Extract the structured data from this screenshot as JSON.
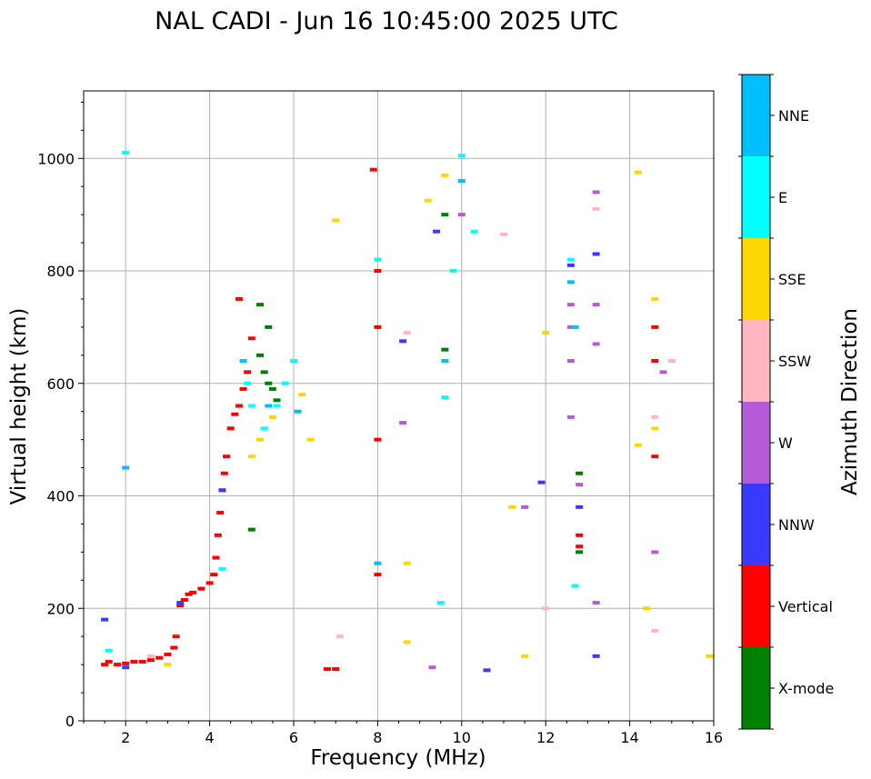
{
  "chart_data": {
    "type": "scatter",
    "title": "NAL CADI - Jun 16 10:45:00 2025 UTC",
    "xlabel": "Frequency (MHz)",
    "ylabel": "Virtual height (km)",
    "xlim": [
      1,
      16
    ],
    "ylim": [
      0,
      1120
    ],
    "xticks": [
      2,
      4,
      6,
      8,
      10,
      12,
      14,
      16
    ],
    "yticks": [
      0,
      200,
      400,
      600,
      800,
      1000
    ],
    "grid": true,
    "colorbar": {
      "title": "Azimuth Direction",
      "categories": [
        {
          "name": "X-mode",
          "color": "#008000"
        },
        {
          "name": "Vertical",
          "color": "#ff0000"
        },
        {
          "name": "NNW",
          "color": "#3a3aff"
        },
        {
          "name": "W",
          "color": "#b65bd8"
        },
        {
          "name": "SSW",
          "color": "#ffb6c1"
        },
        {
          "name": "SSE",
          "color": "#ffd700"
        },
        {
          "name": "E",
          "color": "#00ffff"
        },
        {
          "name": "NNE",
          "color": "#00bfff"
        }
      ]
    },
    "series": [
      {
        "name": "Vertical",
        "points": [
          [
            1.5,
            100
          ],
          [
            1.6,
            105
          ],
          [
            1.8,
            100
          ],
          [
            2.0,
            102
          ],
          [
            2.2,
            105
          ],
          [
            2.4,
            105
          ],
          [
            2.6,
            108
          ],
          [
            2.8,
            112
          ],
          [
            3.0,
            118
          ],
          [
            3.15,
            130
          ],
          [
            3.2,
            150
          ],
          [
            3.3,
            205
          ],
          [
            3.4,
            215
          ],
          [
            3.5,
            225
          ],
          [
            3.6,
            228
          ],
          [
            3.8,
            235
          ],
          [
            4.0,
            245
          ],
          [
            4.1,
            260
          ],
          [
            4.15,
            290
          ],
          [
            4.2,
            330
          ],
          [
            4.25,
            370
          ],
          [
            4.3,
            410
          ],
          [
            4.35,
            440
          ],
          [
            4.4,
            470
          ],
          [
            4.5,
            520
          ],
          [
            4.6,
            545
          ],
          [
            4.7,
            560
          ],
          [
            4.8,
            590
          ],
          [
            4.9,
            620
          ],
          [
            5.0,
            680
          ],
          [
            4.7,
            750
          ],
          [
            6.8,
            92
          ],
          [
            7.0,
            92
          ],
          [
            7.9,
            980
          ],
          [
            8.0,
            800
          ],
          [
            8.0,
            700
          ],
          [
            8.0,
            500
          ],
          [
            8.0,
            260
          ],
          [
            12.8,
            330
          ],
          [
            12.8,
            310
          ],
          [
            14.6,
            640
          ],
          [
            14.6,
            470
          ],
          [
            14.6,
            700
          ]
        ]
      },
      {
        "name": "X-mode",
        "points": [
          [
            5.2,
            650
          ],
          [
            5.3,
            620
          ],
          [
            5.4,
            600
          ],
          [
            5.5,
            590
          ],
          [
            5.6,
            570
          ],
          [
            5.2,
            740
          ],
          [
            5.4,
            700
          ],
          [
            5.0,
            340
          ],
          [
            9.6,
            660
          ],
          [
            9.6,
            900
          ],
          [
            12.8,
            440
          ],
          [
            12.8,
            300
          ]
        ]
      },
      {
        "name": "NNW",
        "points": [
          [
            1.5,
            180
          ],
          [
            2.0,
            95
          ],
          [
            3.3,
            210
          ],
          [
            4.3,
            410
          ],
          [
            8.6,
            675
          ],
          [
            9.4,
            870
          ],
          [
            10.6,
            90
          ],
          [
            11.9,
            424
          ],
          [
            12.6,
            810
          ],
          [
            13.2,
            115
          ],
          [
            13.2,
            830
          ],
          [
            12.8,
            380
          ]
        ]
      },
      {
        "name": "W",
        "points": [
          [
            8.6,
            530
          ],
          [
            9.3,
            95
          ],
          [
            10.0,
            900
          ],
          [
            11.5,
            380
          ],
          [
            12.6,
            540
          ],
          [
            12.6,
            640
          ],
          [
            12.6,
            700
          ],
          [
            12.6,
            740
          ],
          [
            13.2,
            940
          ],
          [
            13.2,
            740
          ],
          [
            13.2,
            670
          ],
          [
            13.2,
            210
          ],
          [
            12.8,
            420
          ],
          [
            14.8,
            620
          ],
          [
            14.6,
            300
          ]
        ]
      },
      {
        "name": "SSW",
        "points": [
          [
            2.6,
            115
          ],
          [
            7.1,
            150
          ],
          [
            8.7,
            690
          ],
          [
            11.0,
            865
          ],
          [
            12.0,
            200
          ],
          [
            13.2,
            910
          ],
          [
            14.6,
            160
          ],
          [
            15.0,
            640
          ],
          [
            14.6,
            540
          ]
        ]
      },
      {
        "name": "SSE",
        "points": [
          [
            3.0,
            100
          ],
          [
            5.0,
            470
          ],
          [
            5.2,
            500
          ],
          [
            5.5,
            540
          ],
          [
            6.2,
            580
          ],
          [
            6.4,
            500
          ],
          [
            7.0,
            890
          ],
          [
            8.7,
            140
          ],
          [
            8.7,
            280
          ],
          [
            9.2,
            925
          ],
          [
            9.6,
            970
          ],
          [
            11.2,
            380
          ],
          [
            11.5,
            115
          ],
          [
            12.0,
            690
          ],
          [
            14.2,
            975
          ],
          [
            14.2,
            490
          ],
          [
            14.4,
            200
          ],
          [
            14.6,
            750
          ],
          [
            14.6,
            520
          ],
          [
            15.9,
            115
          ]
        ]
      },
      {
        "name": "E",
        "points": [
          [
            1.6,
            125
          ],
          [
            2.0,
            1010
          ],
          [
            4.3,
            270
          ],
          [
            4.9,
            600
          ],
          [
            5.0,
            560
          ],
          [
            5.3,
            520
          ],
          [
            5.6,
            560
          ],
          [
            5.8,
            600
          ],
          [
            6.0,
            640
          ],
          [
            8.0,
            820
          ],
          [
            9.5,
            210
          ],
          [
            9.6,
            575
          ],
          [
            9.8,
            800
          ],
          [
            10.0,
            1005
          ],
          [
            10.3,
            870
          ],
          [
            12.6,
            820
          ],
          [
            12.7,
            240
          ]
        ]
      },
      {
        "name": "NNE",
        "points": [
          [
            2.0,
            450
          ],
          [
            4.8,
            640
          ],
          [
            5.4,
            560
          ],
          [
            6.1,
            550
          ],
          [
            8.0,
            280
          ],
          [
            9.6,
            640
          ],
          [
            10.0,
            960
          ],
          [
            12.6,
            780
          ],
          [
            12.7,
            700
          ]
        ]
      }
    ]
  }
}
